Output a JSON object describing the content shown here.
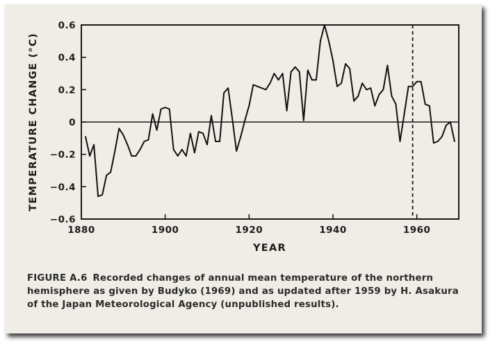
{
  "chart_data": {
    "type": "line",
    "xlabel": "YEAR",
    "ylabel": "TEMPERATURE CHANGE (°C)",
    "xlim": [
      1880,
      1970
    ],
    "ylim": [
      -0.6,
      0.6
    ],
    "x_ticks": [
      1880,
      1900,
      1920,
      1940,
      1960
    ],
    "x_tick_labels": [
      "1880",
      "1900",
      "1920",
      "1940",
      "1960"
    ],
    "y_ticks": [
      0.6,
      0.4,
      0.2,
      0,
      -0.2,
      -0.4,
      -0.6
    ],
    "y_tick_labels": [
      "0.6",
      "0.4",
      "0.2",
      "0",
      "−0.2",
      "−0.4",
      "−0.6"
    ],
    "reference_line_y": 0,
    "vertical_marker_x": 1959,
    "series": [
      {
        "name": "Annual mean temperature change, northern hemisphere",
        "x": [
          1881,
          1882,
          1883,
          1884,
          1885,
          1886,
          1887,
          1888,
          1889,
          1890,
          1891,
          1892,
          1893,
          1894,
          1895,
          1896,
          1897,
          1898,
          1899,
          1900,
          1901,
          1902,
          1903,
          1904,
          1905,
          1906,
          1907,
          1908,
          1909,
          1910,
          1911,
          1912,
          1913,
          1914,
          1915,
          1916,
          1917,
          1918,
          1919,
          1920,
          1921,
          1922,
          1923,
          1924,
          1925,
          1926,
          1927,
          1928,
          1929,
          1930,
          1931,
          1932,
          1933,
          1934,
          1935,
          1936,
          1937,
          1938,
          1939,
          1940,
          1941,
          1942,
          1943,
          1944,
          1945,
          1946,
          1947,
          1948,
          1949,
          1950,
          1951,
          1952,
          1953,
          1954,
          1955,
          1956,
          1957,
          1958,
          1959,
          1960,
          1961,
          1962,
          1963,
          1964,
          1965,
          1966,
          1967,
          1968,
          1969
        ],
        "values": [
          -0.09,
          -0.21,
          -0.14,
          -0.46,
          -0.45,
          -0.33,
          -0.31,
          -0.18,
          -0.04,
          -0.08,
          -0.14,
          -0.21,
          -0.21,
          -0.17,
          -0.12,
          -0.11,
          0.05,
          -0.05,
          0.08,
          0.09,
          0.08,
          -0.17,
          -0.21,
          -0.17,
          -0.21,
          -0.07,
          -0.19,
          -0.06,
          -0.07,
          -0.14,
          0.04,
          -0.12,
          -0.12,
          0.18,
          0.21,
          0.02,
          -0.18,
          -0.09,
          0.01,
          0.1,
          0.23,
          0.22,
          0.21,
          0.2,
          0.24,
          0.3,
          0.26,
          0.3,
          0.07,
          0.31,
          0.34,
          0.31,
          0.01,
          0.32,
          0.26,
          0.26,
          0.5,
          0.6,
          0.5,
          0.38,
          0.22,
          0.24,
          0.36,
          0.33,
          0.13,
          0.16,
          0.24,
          0.2,
          0.21,
          0.1,
          0.17,
          0.2,
          0.35,
          0.16,
          0.11,
          -0.12,
          0.05,
          0.22,
          0.22,
          0.25,
          0.25,
          0.11,
          0.1,
          -0.13,
          -0.12,
          -0.09,
          -0.02,
          0.0,
          -0.12
        ]
      }
    ]
  },
  "caption": {
    "label": "FIGURE A.6",
    "text": "Recorded changes of annual mean temperature of the northern hemisphere as given by Budyko (1969) and as updated after 1959 by H. Asakura of the Japan Meteorological Agency (unpublished results)."
  }
}
